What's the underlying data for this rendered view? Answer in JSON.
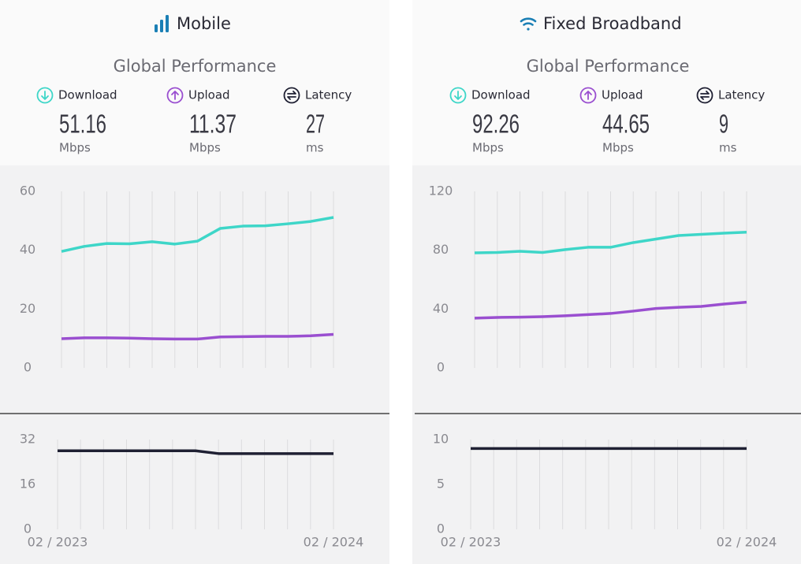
{
  "panels": [
    {
      "title": "Mobile",
      "subtitle": "Global Performance"
    },
    {
      "title": "Fixed Broadband",
      "subtitle": "Global Performance"
    }
  ],
  "chart_data": [
    {
      "type": "line",
      "categories": [
        null,
        null,
        null,
        null,
        null,
        null,
        null,
        null,
        null,
        null,
        null,
        null,
        null
      ],
      "series": [
        {
          "name": "Download",
          "color": "#3ed6c8",
          "summary": 51.16,
          "unit": "Mbps",
          "values": [
            39.6,
            41.3,
            42.3,
            42.2,
            42.9,
            42.1,
            43.1,
            47.4,
            48.2,
            48.3,
            49,
            49.8,
            51.16
          ]
        },
        {
          "name": "Upload",
          "color": "#9a4fd0",
          "summary": 11.37,
          "unit": "Mbps",
          "values": [
            9.9,
            10.2,
            10.2,
            10.1,
            9.9,
            9.8,
            9.8,
            10.5,
            10.6,
            10.7,
            10.7,
            10.9,
            11.37
          ]
        }
      ],
      "ylim": [
        0,
        60
      ],
      "yticks": [
        0,
        20,
        40,
        60
      ],
      "grid": true
    },
    {
      "type": "line",
      "categories": [
        "02 / 2023",
        null,
        null,
        null,
        null,
        null,
        null,
        null,
        null,
        null,
        null,
        null,
        "02 / 2024"
      ],
      "series": [
        {
          "name": "Latency",
          "color": "#1f2033",
          "summary": 27,
          "unit": "ms",
          "values": [
            28,
            28,
            28,
            28,
            28,
            28,
            28,
            27,
            27,
            27,
            27,
            27,
            27
          ]
        }
      ],
      "ylim": [
        0,
        32
      ],
      "yticks": [
        0,
        16,
        32
      ],
      "grid": true
    },
    {
      "type": "line",
      "categories": [
        null,
        null,
        null,
        null,
        null,
        null,
        null,
        null,
        null,
        null,
        null,
        null,
        null
      ],
      "series": [
        {
          "name": "Download",
          "color": "#3ed6c8",
          "summary": 92.26,
          "unit": "Mbps",
          "values": [
            78.2,
            78.5,
            79.3,
            78.5,
            80.4,
            82,
            82,
            85.2,
            87.6,
            90,
            90.8,
            91.6,
            92.26
          ]
        },
        {
          "name": "Upload",
          "color": "#9a4fd0",
          "summary": 44.65,
          "unit": "Mbps",
          "values": [
            33.8,
            34.3,
            34.5,
            34.8,
            35.4,
            36.2,
            37,
            38.6,
            40.4,
            41.2,
            41.8,
            43.4,
            44.65
          ]
        }
      ],
      "ylim": [
        0,
        120
      ],
      "yticks": [
        0,
        40,
        80,
        120
      ],
      "grid": true
    },
    {
      "type": "line",
      "categories": [
        "02 / 2023",
        null,
        null,
        null,
        null,
        null,
        null,
        null,
        null,
        null,
        null,
        null,
        "02 / 2024"
      ],
      "series": [
        {
          "name": "Latency",
          "color": "#1f2033",
          "summary": 9,
          "unit": "ms",
          "values": [
            9,
            9,
            9,
            9,
            9,
            9,
            9,
            9,
            9,
            9,
            9,
            9,
            9
          ]
        }
      ],
      "ylim": [
        0,
        10
      ],
      "yticks": [
        0,
        5,
        10
      ],
      "grid": true
    }
  ]
}
